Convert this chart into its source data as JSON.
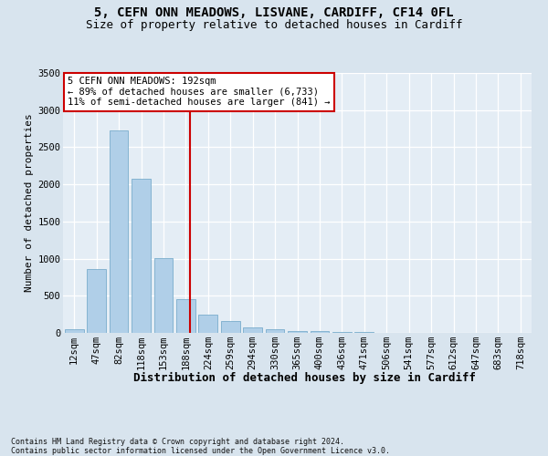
{
  "title1": "5, CEFN ONN MEADOWS, LISVANE, CARDIFF, CF14 0FL",
  "title2": "Size of property relative to detached houses in Cardiff",
  "xlabel": "Distribution of detached houses by size in Cardiff",
  "ylabel": "Number of detached properties",
  "categories": [
    "12sqm",
    "47sqm",
    "82sqm",
    "118sqm",
    "153sqm",
    "188sqm",
    "224sqm",
    "259sqm",
    "294sqm",
    "330sqm",
    "365sqm",
    "400sqm",
    "436sqm",
    "471sqm",
    "506sqm",
    "541sqm",
    "577sqm",
    "612sqm",
    "647sqm",
    "683sqm",
    "718sqm"
  ],
  "values": [
    55,
    860,
    2730,
    2070,
    1010,
    460,
    250,
    160,
    70,
    45,
    30,
    20,
    15,
    10,
    5,
    3,
    2,
    2,
    1,
    1,
    0
  ],
  "bar_color": "#b0cfe8",
  "bar_edgecolor": "#7aadcc",
  "vline_x_index": 5.18,
  "vline_color": "#cc0000",
  "annotation_text": "5 CEFN ONN MEADOWS: 192sqm\n← 89% of detached houses are smaller (6,733)\n11% of semi-detached houses are larger (841) →",
  "annotation_box_facecolor": "#ffffff",
  "annotation_box_edgecolor": "#cc0000",
  "ylim": [
    0,
    3500
  ],
  "yticks": [
    0,
    500,
    1000,
    1500,
    2000,
    2500,
    3000,
    3500
  ],
  "bg_color": "#d8e4ee",
  "plot_bg_color": "#e4edf5",
  "footer": "Contains HM Land Registry data © Crown copyright and database right 2024.\nContains public sector information licensed under the Open Government Licence v3.0.",
  "title1_fontsize": 10,
  "title2_fontsize": 9,
  "xlabel_fontsize": 9,
  "ylabel_fontsize": 8,
  "tick_fontsize": 7.5,
  "annot_fontsize": 7.5,
  "footer_fontsize": 6
}
